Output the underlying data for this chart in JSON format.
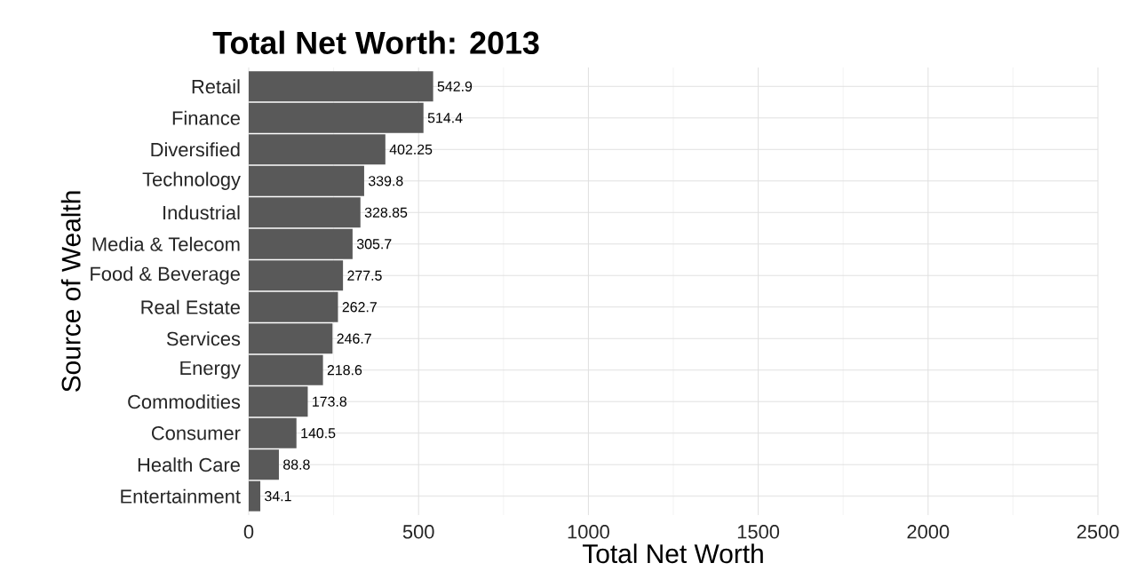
{
  "chart_data": {
    "type": "bar",
    "orientation": "horizontal",
    "title": "Total Net Worth: 2013",
    "xlabel": "Total Net Worth",
    "ylabel": "Source of Wealth",
    "categories": [
      "Retail",
      "Finance",
      "Diversified",
      "Technology",
      "Industrial",
      "Media & Telecom",
      "Food & Beverage",
      "Real Estate",
      "Services",
      "Energy",
      "Commodities",
      "Consumer",
      "Health Care",
      "Entertainment"
    ],
    "values": [
      542.9,
      514.4,
      402.25,
      339.8,
      328.85,
      305.7,
      277.5,
      262.7,
      246.7,
      218.6,
      173.8,
      140.5,
      88.8,
      34.1
    ],
    "color": "#595959",
    "xlim": [
      0,
      2500
    ],
    "xticks": [
      0,
      500,
      1000,
      1500,
      2000,
      2500
    ],
    "grid": true,
    "data_labels": true
  }
}
